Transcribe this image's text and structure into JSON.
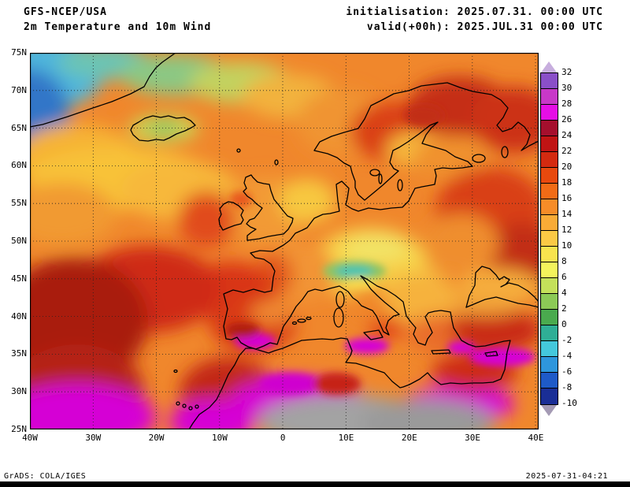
{
  "header": {
    "model": "GFS-NCEP/USA",
    "product": "2m Temperature and 10m Wind",
    "init_label": "initialisation: 2025.07.31. 00:00 UTC",
    "valid_label": "valid(+00h): 2025.JUL.31 00:00 UTC"
  },
  "map": {
    "lat_labels": [
      "75N",
      "70N",
      "65N",
      "60N",
      "55N",
      "50N",
      "45N",
      "40N",
      "35N",
      "30N",
      "25N"
    ],
    "lon_labels": [
      "40W",
      "30W",
      "20W",
      "10W",
      "0",
      "10E",
      "20E",
      "30E",
      "40E"
    ]
  },
  "colorbar": {
    "labels": [
      "32",
      "30",
      "28",
      "26",
      "24",
      "22",
      "20",
      "18",
      "16",
      "14",
      "12",
      "10",
      "8",
      "6",
      "4",
      "2",
      "0",
      "-2",
      "-4",
      "-6",
      "-8",
      "-10"
    ],
    "segments": [
      "#8a4fc8",
      "#c838c8",
      "#e60ee6",
      "#a50f2d",
      "#c01414",
      "#d42a10",
      "#e8490e",
      "#f26b16",
      "#f68c28",
      "#f9ab36",
      "#fbc945",
      "#f8e34e",
      "#f4f45c",
      "#c4e05a",
      "#8cca56",
      "#4aaa4e",
      "#2fae96",
      "#44c8dc",
      "#2e96dc",
      "#1e5ac8",
      "#1a2e96"
    ],
    "arrow_top_color": "#c7aede",
    "arrow_bottom_color": "#a49ab4"
  },
  "footer": {
    "grads": "GrADS: COLA/IGES",
    "timestamp": "2025-07-31-04:21"
  }
}
